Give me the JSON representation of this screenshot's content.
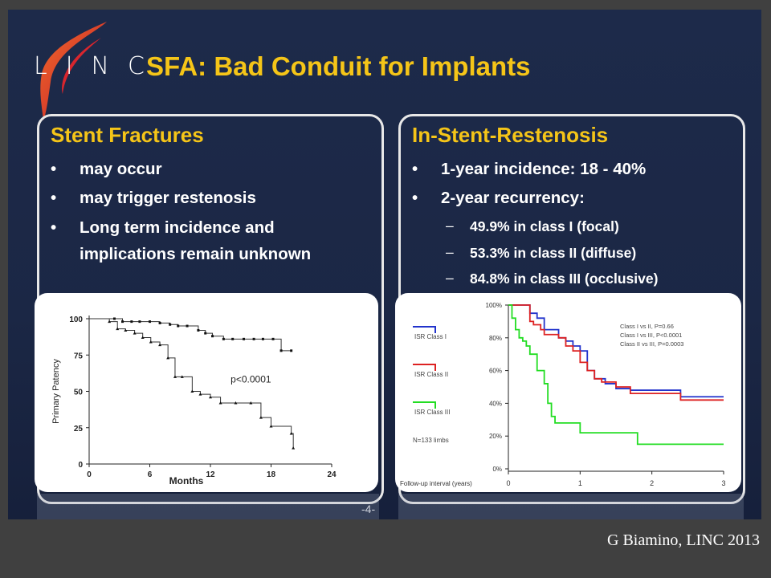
{
  "slide": {
    "logo_text": "LINC",
    "title": "SFA: Bad Conduit for Implants",
    "page_number": "-4-",
    "credit": "G Biamino, LINC 2013"
  },
  "left_panel": {
    "heading": "Stent Fractures",
    "bullets": [
      "may occur",
      "may trigger restenosis",
      "Long term incidence and",
      "implications remain unknown"
    ]
  },
  "right_panel": {
    "heading": "In-Stent-Restenosis",
    "bullets": [
      "1-year incidence: 18 - 40%",
      "2-year recurrency:"
    ],
    "sub_bullets": [
      "49.9% in class I (focal)",
      "53.3% in class II (diffuse)",
      "84.8% in class III (occlusive)"
    ]
  },
  "colors": {
    "background": "#1c2846",
    "title": "#f5c518",
    "class_I": "#2233cc",
    "class_II": "#dd2222",
    "class_III": "#22dd22"
  },
  "chart_data": [
    {
      "type": "line",
      "xlabel": "Months",
      "ylabel": "Primary Patency",
      "xlim": [
        0,
        24
      ],
      "ylim": [
        0,
        100
      ],
      "xticks": [
        "0",
        "6",
        "12",
        "18",
        "24"
      ],
      "yticks": [
        "0",
        "25",
        "50",
        "75",
        "100"
      ],
      "annotation": "p<0.0001",
      "series": [
        {
          "x": [
            0,
            2.5,
            3.3,
            4.2,
            5,
            6,
            7,
            8,
            8.8,
            9.7,
            10.8,
            11.5,
            12.2,
            13.3,
            14.2,
            15.3,
            16.3,
            17.2,
            18.2,
            19,
            20
          ],
          "y": [
            100,
            100,
            98,
            98,
            98,
            98,
            97,
            96,
            95,
            95,
            92,
            90,
            88,
            86,
            86,
            86,
            86,
            86,
            86,
            78,
            78
          ]
        },
        {
          "x": [
            0,
            2,
            2.8,
            3.6,
            4.5,
            5.3,
            6.1,
            7,
            7.8,
            8.5,
            9.2,
            10.2,
            11,
            12,
            13,
            14.5,
            16,
            17,
            18,
            20,
            20.2
          ],
          "y": [
            100,
            98,
            93,
            92,
            90,
            87,
            84,
            82,
            73,
            60,
            60,
            50,
            48,
            46,
            42,
            42,
            42,
            32,
            26,
            21,
            11
          ]
        }
      ]
    },
    {
      "type": "line",
      "xlabel": "Follow-up interval (years)",
      "xlim": [
        0,
        3
      ],
      "ylim": [
        0,
        100
      ],
      "xticks": [
        "0",
        "1",
        "2",
        "3"
      ],
      "yticks": [
        "0%",
        "20%",
        "40%",
        "60%",
        "80%",
        "100%"
      ],
      "legend": [
        "ISR Class I",
        "ISR Class II",
        "ISR Class III"
      ],
      "annotations": [
        "Class I vs II, P=0.66",
        "Class I vs III, P<0.0001",
        "Class II vs III, P=0.0003"
      ],
      "note": "N=133 limbs",
      "series": [
        {
          "name": "ISR Class I",
          "x": [
            0,
            0.25,
            0.3,
            0.4,
            0.5,
            0.6,
            0.7,
            0.8,
            0.9,
            1.0,
            1.1,
            1.2,
            1.35,
            1.5,
            1.7,
            2.3,
            2.4,
            3.0
          ],
          "y": [
            100,
            100,
            95,
            92,
            85,
            85,
            80,
            78,
            75,
            72,
            60,
            55,
            52,
            49,
            48,
            48,
            44,
            44
          ]
        },
        {
          "name": "ISR Class II",
          "x": [
            0,
            0.25,
            0.3,
            0.35,
            0.45,
            0.5,
            0.6,
            0.7,
            0.8,
            0.9,
            1.0,
            1.1,
            1.2,
            1.3,
            1.5,
            1.7,
            2.0,
            2.4,
            3.0
          ],
          "y": [
            100,
            100,
            90,
            88,
            85,
            82,
            82,
            80,
            75,
            72,
            65,
            60,
            55,
            53,
            50,
            46,
            46,
            42,
            42
          ]
        },
        {
          "name": "ISR Class III",
          "x": [
            0,
            0.05,
            0.1,
            0.15,
            0.2,
            0.25,
            0.3,
            0.4,
            0.5,
            0.55,
            0.6,
            0.65,
            0.7,
            0.9,
            1.0,
            1.7,
            1.8,
            3.0
          ],
          "y": [
            100,
            92,
            85,
            80,
            78,
            75,
            70,
            60,
            52,
            40,
            32,
            28,
            28,
            28,
            22,
            22,
            15,
            15
          ]
        }
      ]
    }
  ]
}
